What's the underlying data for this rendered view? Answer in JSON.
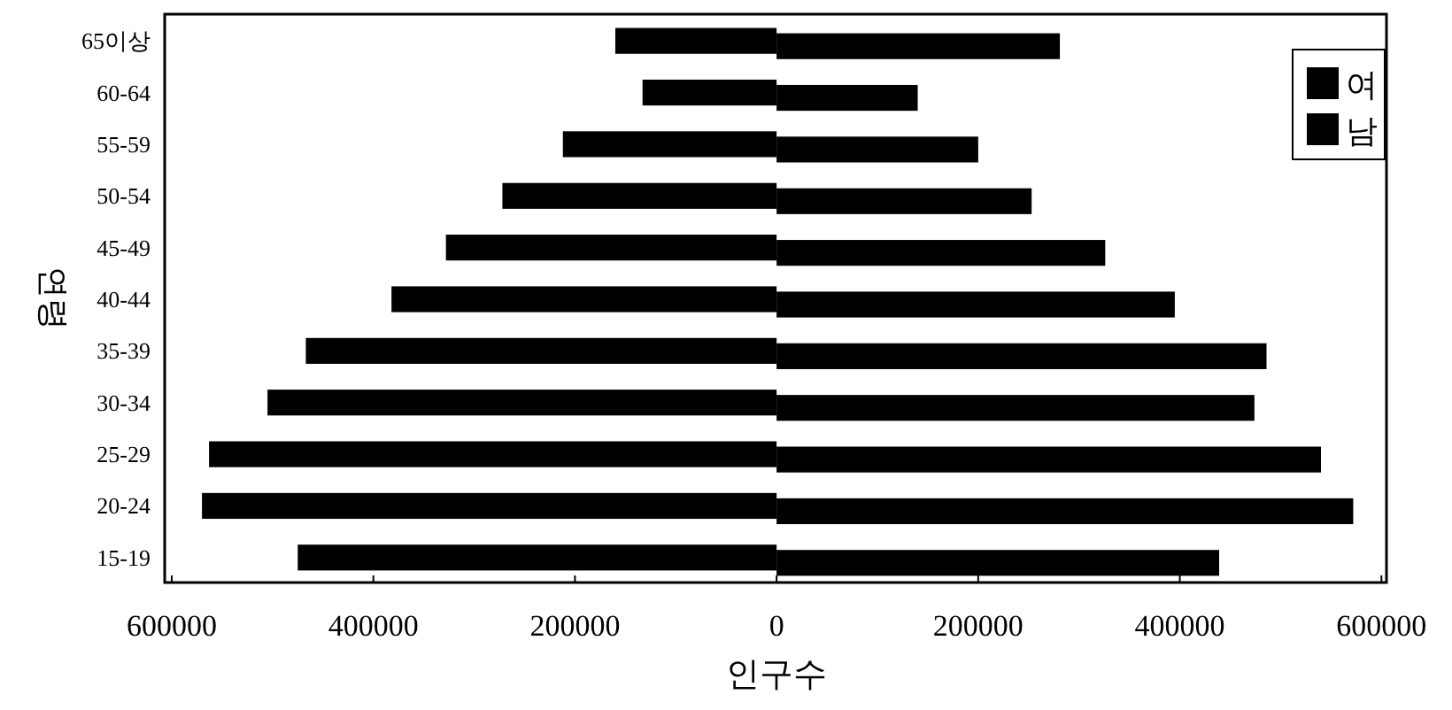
{
  "chart_data": {
    "type": "bar",
    "orientation": "horizontal",
    "stacked": true,
    "categories": [
      "65이상",
      "60-64",
      "55-59",
      "50-54",
      "45-49",
      "40-44",
      "35-39",
      "30-34",
      "25-29",
      "20-24",
      "15-19"
    ],
    "series": [
      {
        "name": "남",
        "color": "#000000",
        "values": [
          -160000,
          -133000,
          -212000,
          -272000,
          -328000,
          -382000,
          -467000,
          -505000,
          -563000,
          -570000,
          -475000
        ]
      },
      {
        "name": "여",
        "color": "#000000",
        "values": [
          281000,
          140000,
          200000,
          253000,
          326000,
          395000,
          486000,
          474000,
          540000,
          572000,
          439000
        ]
      }
    ],
    "xlim": [
      -607000,
      605000
    ],
    "xticks": [
      {
        "value": -600000,
        "label": "600000"
      },
      {
        "value": -400000,
        "label": "400000"
      },
      {
        "value": -200000,
        "label": "200000"
      },
      0,
      200000,
      400000,
      600000
    ],
    "xlabel": "인구수",
    "ylabel": "연령",
    "legend": "top right",
    "grid": false
  }
}
